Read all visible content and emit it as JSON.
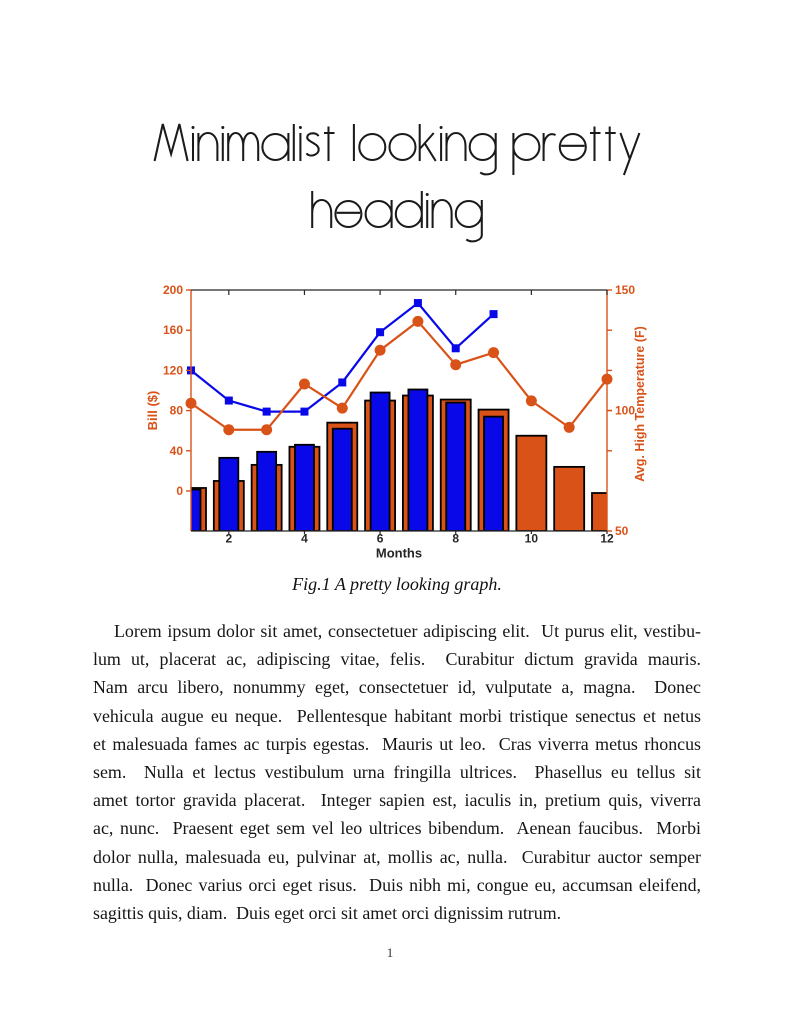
{
  "heading": {
    "lines": [
      "Minimalist looking pretty",
      "heading"
    ]
  },
  "caption": "Fig.1 A pretty looking graph.",
  "page_number": "1",
  "body_lines": [
    "Lorem ipsum dolor sit amet, consectetuer adipiscing elit.  Ut purus elit, vestibu-",
    "lum ut, placerat ac, adipiscing vitae, felis.  Curabitur dictum gravida mauris.",
    "Nam arcu libero, nonummy eget, consectetuer id, vulputate a, magna.  Donec",
    "vehicula augue eu neque.  Pellentesque habitant morbi tristique senectus et netus",
    "et malesuada fames ac turpis egestas.  Mauris ut leo.  Cras viverra metus rhoncus",
    "sem.  Nulla et lectus vestibulum urna fringilla ultrices.  Phasellus eu tellus sit",
    "amet tortor gravida placerat.  Integer sapien est, iaculis in, pretium quis, viverra",
    "ac, nunc.  Praesent eget sem vel leo ultrices bibendum.  Aenean faucibus.  Morbi",
    "dolor nulla, malesuada eu, pulvinar at, mollis ac, nulla.  Curabitur auctor semper",
    "nulla.  Donec varius orci eget risus.  Duis nibh mi, congue eu, accumsan eleifend,",
    "sagittis quis, diam.  Duis eget orci sit amet orci dignissim rutrum."
  ],
  "chart_data": {
    "type": "bar+line dual-axis",
    "title": "",
    "xlabel": "Months",
    "ylabel_left": "Bill ($)",
    "ylabel_right": "Avg. High Temperature (F)",
    "x": [
      1,
      2,
      3,
      4,
      5,
      6,
      7,
      8,
      9,
      10,
      11,
      12
    ],
    "xticks": [
      2,
      4,
      6,
      8,
      10,
      12
    ],
    "ylim_left": [
      -40,
      200
    ],
    "yticks_left": [
      0,
      40,
      80,
      120,
      160,
      200
    ],
    "ylim_right": [
      50,
      150
    ],
    "yticks_right": [
      50,
      100,
      150
    ],
    "series": [
      {
        "name": "orange-bars",
        "type": "bar",
        "axis": "left",
        "baseline": "plot-bottom",
        "values": [
          3,
          10,
          26,
          44,
          68,
          90,
          95,
          91,
          81,
          55,
          24,
          -2
        ]
      },
      {
        "name": "blue-bars",
        "type": "bar",
        "axis": "left",
        "baseline": "plot-bottom",
        "values": [
          1.5,
          33,
          39,
          46,
          62,
          98,
          101,
          88,
          74,
          null,
          null,
          null
        ]
      },
      {
        "name": "blue-line",
        "type": "line",
        "axis": "left",
        "marker": "square",
        "values": [
          120,
          90,
          79,
          79,
          108,
          158,
          187,
          142,
          176,
          null,
          null,
          null
        ]
      },
      {
        "name": "orange-line",
        "type": "line",
        "axis": "right",
        "marker": "circle",
        "values": [
          103,
          92,
          92,
          111,
          101,
          125,
          137,
          119,
          124,
          104,
          93,
          113
        ]
      }
    ],
    "colors": {
      "orange": "#D95319",
      "blue": "#0808E8",
      "bar_edge": "#000000",
      "axis_dark": "#262626"
    },
    "legend": null,
    "grid": false
  }
}
